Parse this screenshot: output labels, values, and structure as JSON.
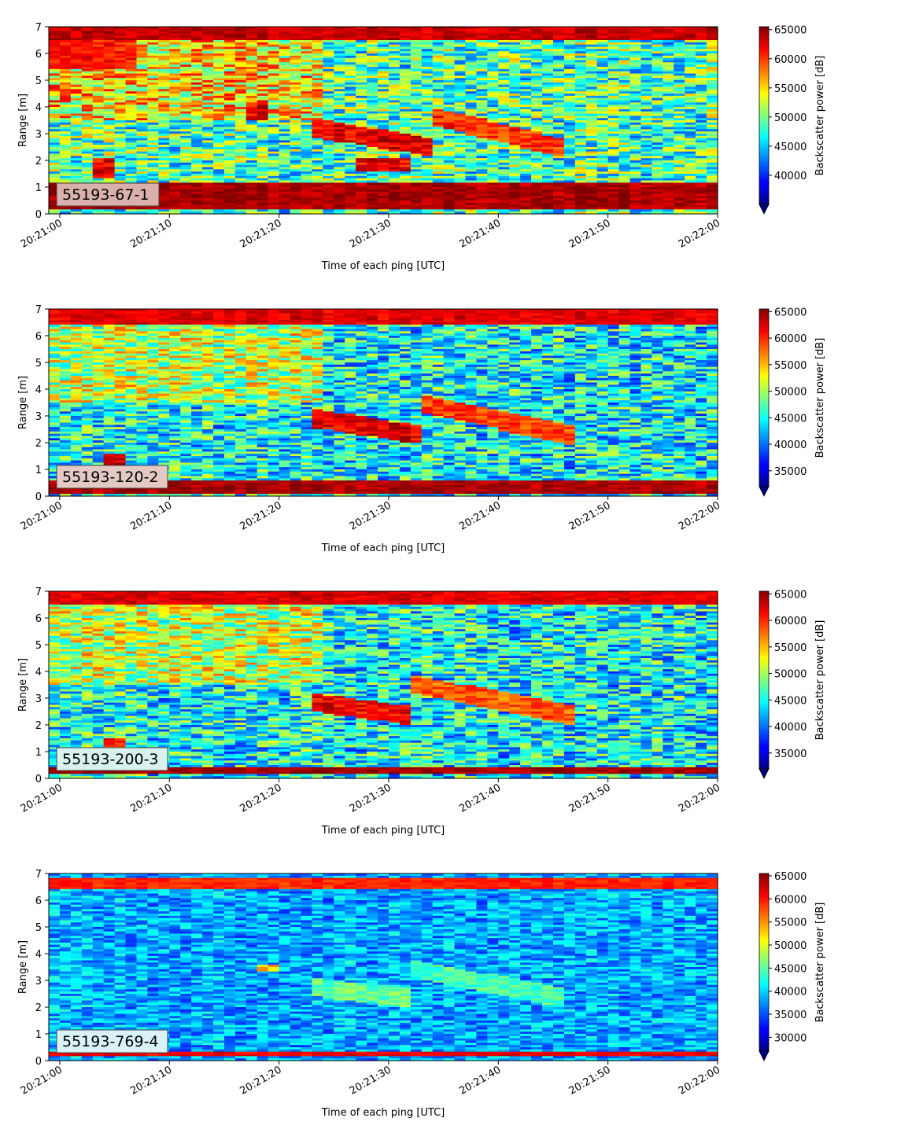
{
  "chart_data": [
    {
      "type": "heatmap",
      "label": "55193-67-1",
      "label_box_color": "#d9b0ac",
      "xlabel": "Time of each ping [UTC]",
      "ylabel": "Range [m]",
      "x_ticks": [
        "20:21:00",
        "20:21:10",
        "20:21:20",
        "20:21:30",
        "20:21:40",
        "20:21:50",
        "20:22:00"
      ],
      "xlim": [
        "20:20:59",
        "20:22:00"
      ],
      "y_ticks": [
        0,
        1,
        2,
        3,
        4,
        5,
        6,
        7
      ],
      "ylim": [
        0,
        7
      ],
      "colormap": "jet",
      "colorbar_label": "Backscatter power [dB]",
      "colorbar_ticks": [
        40000,
        45000,
        50000,
        55000,
        60000,
        65000
      ],
      "colorbar_range": [
        35000,
        65500
      ],
      "features": [
        {
          "kind": "band",
          "t0": "20:20:59",
          "t1": "20:22:00",
          "r0": 0.2,
          "r1": 1.2,
          "level": 65000
        },
        {
          "kind": "band",
          "t0": "20:20:59",
          "t1": "20:22:00",
          "r0": 6.5,
          "r1": 7.0,
          "level": 64000
        },
        {
          "kind": "layer",
          "t0": "20:21:23",
          "t1": "20:21:34",
          "r0": 2.4,
          "r1": 3.3,
          "level": 64000
        },
        {
          "kind": "layer",
          "t0": "20:21:34",
          "t1": "20:21:46",
          "r0": 2.3,
          "r1": 3.8,
          "level": 62000
        },
        {
          "kind": "patch",
          "t0": "20:21:27",
          "t1": "20:21:32",
          "r0": 1.6,
          "r1": 2.1,
          "level": 64000
        },
        {
          "kind": "patch",
          "t0": "20:21:03",
          "t1": "20:21:05",
          "r0": 1.3,
          "r1": 2.1,
          "level": 64000
        },
        {
          "kind": "patch",
          "t0": "20:21:17",
          "t1": "20:21:19",
          "r0": 3.5,
          "r1": 4.2,
          "level": 64000
        }
      ]
    },
    {
      "type": "heatmap",
      "label": "55193-120-2",
      "label_box_color": "#e4c8c4",
      "xlabel": "Time of each ping [UTC]",
      "ylabel": "Range [m]",
      "x_ticks": [
        "20:21:00",
        "20:21:10",
        "20:21:20",
        "20:21:30",
        "20:21:40",
        "20:21:50",
        "20:22:00"
      ],
      "xlim": [
        "20:20:59",
        "20:22:00"
      ],
      "y_ticks": [
        0,
        1,
        2,
        3,
        4,
        5,
        6,
        7
      ],
      "ylim": [
        0,
        7
      ],
      "colormap": "jet",
      "colorbar_label": "Backscatter power [dB]",
      "colorbar_ticks": [
        35000,
        40000,
        45000,
        50000,
        55000,
        60000,
        65000
      ],
      "colorbar_range": [
        32000,
        65500
      ],
      "features": [
        {
          "kind": "band",
          "t0": "20:20:59",
          "t1": "20:22:00",
          "r0": 0.1,
          "r1": 0.6,
          "level": 65000
        },
        {
          "kind": "band",
          "t0": "20:20:59",
          "t1": "20:22:00",
          "r0": 6.4,
          "r1": 7.0,
          "level": 63000
        },
        {
          "kind": "layer",
          "t0": "20:21:23",
          "t1": "20:21:33",
          "r0": 2.2,
          "r1": 3.0,
          "level": 64000
        },
        {
          "kind": "layer",
          "t0": "20:21:33",
          "t1": "20:21:47",
          "r0": 2.1,
          "r1": 3.6,
          "level": 61000
        },
        {
          "kind": "patch",
          "t0": "20:21:04",
          "t1": "20:21:06",
          "r0": 1.1,
          "r1": 1.6,
          "level": 64000
        }
      ]
    },
    {
      "type": "heatmap",
      "label": "55193-200-3",
      "label_box_color": "#d8f2ef",
      "xlabel": "Time of each ping [UTC]",
      "ylabel": "Range [m]",
      "x_ticks": [
        "20:21:00",
        "20:21:10",
        "20:21:20",
        "20:21:30",
        "20:21:40",
        "20:21:50",
        "20:22:00"
      ],
      "xlim": [
        "20:20:59",
        "20:22:00"
      ],
      "y_ticks": [
        0,
        1,
        2,
        3,
        4,
        5,
        6,
        7
      ],
      "ylim": [
        0,
        7
      ],
      "colormap": "jet",
      "colorbar_label": "Backscatter power [dB]",
      "colorbar_ticks": [
        35000,
        40000,
        45000,
        50000,
        55000,
        60000,
        65000
      ],
      "colorbar_range": [
        32000,
        65500
      ],
      "features": [
        {
          "kind": "band",
          "t0": "20:20:59",
          "t1": "20:22:00",
          "r0": 0.15,
          "r1": 0.4,
          "level": 65000
        },
        {
          "kind": "band",
          "t0": "20:20:59",
          "t1": "20:22:00",
          "r0": 6.5,
          "r1": 7.0,
          "level": 63000
        },
        {
          "kind": "layer",
          "t0": "20:21:23",
          "t1": "20:21:32",
          "r0": 2.3,
          "r1": 2.9,
          "level": 63000
        },
        {
          "kind": "layer",
          "t0": "20:21:32",
          "t1": "20:21:47",
          "r0": 2.2,
          "r1": 3.7,
          "level": 60000
        },
        {
          "kind": "patch",
          "t0": "20:21:04",
          "t1": "20:21:06",
          "r0": 1.2,
          "r1": 1.5,
          "level": 62000
        }
      ]
    },
    {
      "type": "heatmap",
      "label": "55193-769-4",
      "label_box_color": "#d8f2f8",
      "xlabel": "Time of each ping [UTC]",
      "ylabel": "Range [m]",
      "x_ticks": [
        "20:21:00",
        "20:21:10",
        "20:21:20",
        "20:21:30",
        "20:21:40",
        "20:21:50",
        "20:22:00"
      ],
      "xlim": [
        "20:20:59",
        "20:22:00"
      ],
      "y_ticks": [
        0,
        1,
        2,
        3,
        4,
        5,
        6,
        7
      ],
      "ylim": [
        0,
        7
      ],
      "colormap": "jet",
      "colorbar_label": "Backscatter power [dB]",
      "colorbar_ticks": [
        30000,
        35000,
        40000,
        45000,
        50000,
        55000,
        60000,
        65000
      ],
      "colorbar_range": [
        27000,
        65500
      ],
      "features": [
        {
          "kind": "band",
          "t0": "20:20:59",
          "t1": "20:22:00",
          "r0": 0.15,
          "r1": 0.35,
          "level": 62000
        },
        {
          "kind": "band",
          "t0": "20:20:59",
          "t1": "20:22:00",
          "r0": 6.4,
          "r1": 6.8,
          "level": 60000
        },
        {
          "kind": "layer",
          "t0": "20:21:23",
          "t1": "20:21:32",
          "r0": 2.3,
          "r1": 2.8,
          "level": 47000
        },
        {
          "kind": "layer",
          "t0": "20:21:32",
          "t1": "20:21:46",
          "r0": 2.2,
          "r1": 3.6,
          "level": 46000
        },
        {
          "kind": "patch",
          "t0": "20:21:18",
          "t1": "20:21:20",
          "r0": 3.3,
          "r1": 3.6,
          "level": 55000
        }
      ]
    }
  ]
}
